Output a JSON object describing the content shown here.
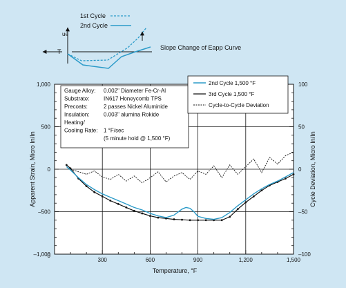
{
  "inset": {
    "legend_1st": "1st Cycle",
    "legend_2nd": "2nd Cycle",
    "axis_y_label": "ue",
    "axis_x_label": "T",
    "caption": "Slope Change of Eapp Curve"
  },
  "colors": {
    "cycle2": "#2b9bc9",
    "cycle3": "#111111",
    "deviation": "#111111",
    "background": "#cfe6f3",
    "plot_bg": "#ffffff",
    "grid": "#111111"
  },
  "specs": [
    {
      "key": "Gauge Alloy:",
      "value": "0.002\" Diameter Fe-Cr-Al"
    },
    {
      "key": "Substrate:",
      "value": "IN617 Honeycomb TPS"
    },
    {
      "key": "Precoats:",
      "value": "2 passes Nickel Aluminide"
    },
    {
      "key": "Insulation:",
      "value": "0.003\" alumina Rokide"
    },
    {
      "key": "Heating/",
      "value": ""
    },
    {
      "key": "Cooling Rate:",
      "value": "1 °F/sec"
    },
    {
      "key": "",
      "value": "(5 minute hold @ 1,500 °F)"
    }
  ],
  "chart_data": {
    "type": "line",
    "xlabel": "Temperature, °F",
    "ylabel": "Apparent Strain, Micro In/In",
    "y2label": "Cycle Deviation, Micro In/In",
    "xlim": [
      0,
      1500
    ],
    "ylim": [
      -1000,
      1000
    ],
    "y2lim": [
      -100,
      100
    ],
    "xticks": [
      "300",
      "600",
      "900",
      "1,200",
      "1,500"
    ],
    "xtick_values": [
      300,
      600,
      900,
      1200,
      1500
    ],
    "xtick_zero": "0",
    "yticks": [
      "1,000",
      "500",
      "0",
      "–500",
      "–1,000"
    ],
    "ytick_values": [
      1000,
      500,
      0,
      -500,
      -1000
    ],
    "y2ticks": [
      "100",
      "50",
      "0",
      "–50",
      "–100"
    ],
    "y2tick_values": [
      100,
      50,
      0,
      -50,
      -100
    ],
    "grid": true,
    "legend_position": "top-right",
    "series": [
      {
        "name": "2nd Cycle 1,500 °F",
        "axis": "left",
        "x": [
          75,
          100,
          150,
          200,
          250,
          300,
          350,
          400,
          450,
          500,
          550,
          600,
          650,
          700,
          750,
          800,
          825,
          850,
          875,
          900,
          950,
          1000,
          1050,
          1100,
          1150,
          1200,
          1250,
          1300,
          1350,
          1400,
          1450,
          1500
        ],
        "y": [
          30,
          -10,
          -100,
          -180,
          -240,
          -290,
          -330,
          -370,
          -410,
          -450,
          -480,
          -520,
          -550,
          -570,
          -540,
          -470,
          -450,
          -460,
          -500,
          -555,
          -580,
          -590,
          -570,
          -510,
          -430,
          -360,
          -290,
          -230,
          -180,
          -140,
          -90,
          -40
        ]
      },
      {
        "name": "3rd Cycle 1,500 °F",
        "axis": "left",
        "x": [
          75,
          100,
          150,
          200,
          250,
          300,
          350,
          400,
          450,
          500,
          550,
          600,
          650,
          700,
          750,
          800,
          850,
          900,
          950,
          1000,
          1050,
          1100,
          1150,
          1200,
          1250,
          1300,
          1350,
          1400,
          1450,
          1500
        ],
        "y": [
          50,
          10,
          -110,
          -200,
          -270,
          -320,
          -370,
          -410,
          -450,
          -490,
          -520,
          -550,
          -570,
          -580,
          -590,
          -595,
          -600,
          -600,
          -600,
          -600,
          -600,
          -560,
          -470,
          -390,
          -320,
          -250,
          -190,
          -150,
          -110,
          -60
        ]
      },
      {
        "name": "Cycle-to-Cycle Deviation",
        "axis": "right",
        "x": [
          75,
          100,
          150,
          200,
          250,
          300,
          350,
          400,
          450,
          500,
          550,
          600,
          650,
          700,
          750,
          800,
          850,
          900,
          950,
          1000,
          1050,
          1100,
          1150,
          1200,
          1250,
          1300,
          1350,
          1400,
          1450,
          1500
        ],
        "y": [
          3,
          0,
          -3,
          -6,
          -2,
          -9,
          -12,
          -6,
          -14,
          -8,
          -16,
          -10,
          -3,
          -15,
          -8,
          -4,
          -12,
          -2,
          -6,
          4,
          -10,
          5,
          -6,
          3,
          12,
          -4,
          14,
          6,
          16,
          20
        ]
      }
    ]
  }
}
